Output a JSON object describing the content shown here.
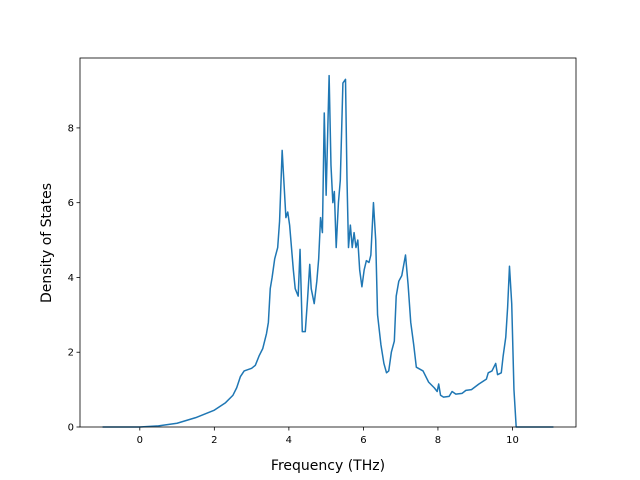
{
  "chart_data": {
    "type": "line",
    "x_label": "Frequency (THz)",
    "y_label": "Density of States",
    "xlim": [
      -1.605,
      11.705
    ],
    "ylim": [
      0,
      9.87
    ],
    "xticks": [
      0,
      2,
      4,
      6,
      8,
      10
    ],
    "yticks": [
      0,
      2,
      4,
      6,
      8
    ],
    "series": [
      {
        "color": "#1f77b4",
        "x": [
          -1,
          0,
          0.5,
          1,
          1.5,
          2,
          2.3,
          2.5,
          2.6,
          2.7,
          2.8,
          3.0,
          3.1,
          3.2,
          3.3,
          3.4,
          3.45,
          3.5,
          3.55,
          3.62,
          3.7,
          3.75,
          3.82,
          3.87,
          3.92,
          3.97,
          4.02,
          4.07,
          4.12,
          4.17,
          4.25,
          4.3,
          4.36,
          4.44,
          4.5,
          4.56,
          4.6,
          4.68,
          4.75,
          4.8,
          4.85,
          4.9,
          4.95,
          5.0,
          5.08,
          5.13,
          5.18,
          5.22,
          5.27,
          5.33,
          5.38,
          5.45,
          5.52,
          5.56,
          5.6,
          5.65,
          5.7,
          5.75,
          5.8,
          5.85,
          5.9,
          5.96,
          6.02,
          6.08,
          6.15,
          6.2,
          6.27,
          6.33,
          6.38,
          6.47,
          6.55,
          6.62,
          6.68,
          6.75,
          6.83,
          6.88,
          6.95,
          7.03,
          7.13,
          7.2,
          7.27,
          7.35,
          7.42,
          7.6,
          7.75,
          7.9,
          7.98,
          8.02,
          8.07,
          8.15,
          8.3,
          8.38,
          8.48,
          8.65,
          8.75,
          8.9,
          9.1,
          9.3,
          9.35,
          9.45,
          9.55,
          9.6,
          9.7,
          9.75,
          9.82,
          9.87,
          9.92,
          9.98,
          10.04,
          10.1,
          10.5,
          11.1
        ],
        "values": [
          0,
          0,
          0.03,
          0.1,
          0.25,
          0.45,
          0.65,
          0.85,
          1.05,
          1.35,
          1.5,
          1.57,
          1.65,
          1.9,
          2.1,
          2.5,
          2.8,
          3.7,
          4.0,
          4.5,
          4.8,
          5.5,
          7.4,
          6.5,
          5.6,
          5.75,
          5.4,
          4.8,
          4.2,
          3.7,
          3.5,
          4.75,
          2.55,
          2.55,
          3.4,
          4.35,
          3.7,
          3.3,
          3.9,
          4.5,
          5.6,
          5.2,
          8.4,
          6.2,
          9.4,
          7.0,
          6.0,
          6.3,
          4.8,
          6.0,
          6.6,
          9.2,
          9.3,
          6.6,
          4.8,
          5.4,
          4.8,
          5.2,
          4.8,
          5.0,
          4.2,
          3.75,
          4.2,
          4.45,
          4.4,
          4.6,
          6.0,
          5.0,
          3.0,
          2.2,
          1.7,
          1.45,
          1.5,
          2.0,
          2.3,
          3.5,
          3.9,
          4.05,
          4.6,
          3.8,
          2.8,
          2.2,
          1.6,
          1.5,
          1.2,
          1.05,
          0.95,
          1.15,
          0.85,
          0.8,
          0.82,
          0.95,
          0.88,
          0.9,
          0.98,
          1.0,
          1.15,
          1.28,
          1.45,
          1.5,
          1.7,
          1.4,
          1.45,
          1.9,
          2.4,
          3.2,
          4.3,
          3.3,
          1.0,
          0,
          0,
          0
        ]
      }
    ]
  }
}
